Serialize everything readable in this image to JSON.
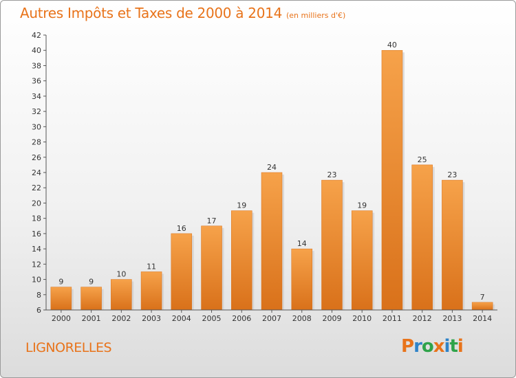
{
  "title": "Autres Impôts et Taxes de 2000 à 2014",
  "subtitle": "(en milliers d'€)",
  "commune": "LIGNORELLES",
  "logo": {
    "letters": [
      "P",
      "r",
      "o",
      "x",
      "i",
      "t",
      "i"
    ],
    "colors": [
      "#e8731a",
      "#2f83c8",
      "#2fa34a",
      "#e8731a",
      "#2f83c8",
      "#2fa34a",
      "#e8731a"
    ]
  },
  "colors": {
    "title": "#e8731a",
    "bar": "#f0902a",
    "bar_shadow": "#c9c9c9"
  },
  "chart_data": {
    "type": "bar",
    "categories": [
      "2000",
      "2001",
      "2002",
      "2003",
      "2004",
      "2005",
      "2006",
      "2007",
      "2008",
      "2009",
      "2010",
      "2011",
      "2012",
      "2013",
      "2014"
    ],
    "values": [
      9,
      9,
      10,
      11,
      16,
      17,
      19,
      24,
      14,
      23,
      19,
      40,
      25,
      23,
      7
    ],
    "value_labels": [
      "9",
      "9",
      "10",
      "11",
      "16",
      "17",
      "19",
      "24",
      "14",
      "23",
      "19",
      "40",
      "25",
      "23",
      "7"
    ],
    "title": "Autres Impôts et Taxes de 2000 à 2014",
    "xlabel": "",
    "ylabel": "",
    "ylim": [
      6,
      42
    ],
    "yticks": [
      6,
      8,
      10,
      12,
      14,
      16,
      18,
      20,
      22,
      24,
      26,
      28,
      30,
      32,
      34,
      36,
      38,
      40,
      42
    ],
    "ytick_labels": [
      "6",
      "8",
      "10",
      "12",
      "14",
      "16",
      "18",
      "20",
      "22",
      "24",
      "26",
      "28",
      "30",
      "32",
      "34",
      "36",
      "38",
      "40",
      "42"
    ],
    "grid": false
  }
}
